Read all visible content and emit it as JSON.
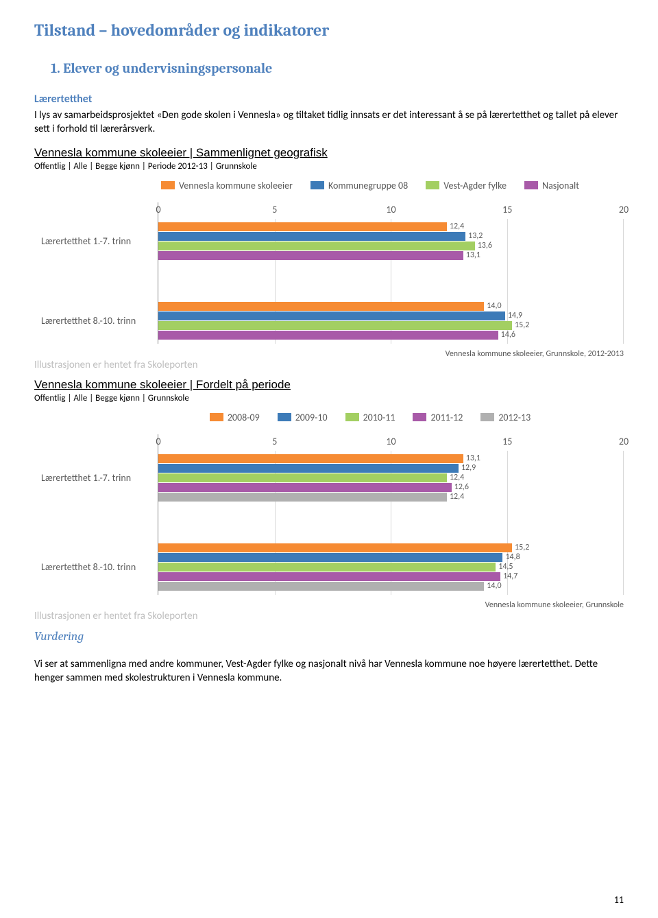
{
  "page": {
    "title_main": "Tilstand – hovedområder og indikatorer",
    "title_sub": "1.  Elever og undervisningspersonale",
    "section_header": "Lærertetthet",
    "intro_text": "I lys av samarbeidsprosjektet «Den gode skolen i Vennesla» og tiltaket tidlig innsats er det interessant å se på lærertetthet og tallet på elever sett i forhold til lærerårsverk.",
    "illus_note": "Illustrasjonen er hentet fra Skoleporten",
    "vurdering_hdr": "Vurdering",
    "conclusion": "Vi ser at sammenligna med andre kommuner, Vest-Agder fylke og nasjonalt nivå har Vennesla kommune noe høyere lærertetthet. Dette henger sammen med skolestrukturen i Vennesla kommune.",
    "page_num": "11"
  },
  "colors": {
    "orange": "#f68b33",
    "blue": "#3d7bb8",
    "green": "#a3cf62",
    "purple": "#a85aa8",
    "grey": "#b0b0b0"
  },
  "chart1": {
    "title": "Vennesla kommune skoleeier | Sammenlignet geografisk",
    "subtitle": "Offentlig | Alle | Begge kjønn | Periode 2012-13 | Grunnskole",
    "legend": [
      {
        "color": "#f68b33",
        "label": "Vennesla kommune skoleeier"
      },
      {
        "color": "#3d7bb8",
        "label": "Kommunegruppe 08"
      },
      {
        "color": "#a3cf62",
        "label": "Vest-Agder fylke"
      },
      {
        "color": "#a85aa8",
        "label": "Nasjonalt"
      }
    ],
    "xmax": 20,
    "xticks": [
      "0",
      "5",
      "10",
      "15",
      "20"
    ],
    "categories": [
      {
        "label": "Lærertetthet 1.-7. trinn",
        "bars": [
          {
            "color": "#f68b33",
            "value": 12.4,
            "label": "12,4"
          },
          {
            "color": "#3d7bb8",
            "value": 13.2,
            "label": "13,2"
          },
          {
            "color": "#a3cf62",
            "value": 13.6,
            "label": "13,6"
          },
          {
            "color": "#a85aa8",
            "value": 13.1,
            "label": "13,1"
          }
        ]
      },
      {
        "label": "Lærertetthet 8.-10. trinn",
        "bars": [
          {
            "color": "#f68b33",
            "value": 14.0,
            "label": "14,0"
          },
          {
            "color": "#3d7bb8",
            "value": 14.9,
            "label": "14,9"
          },
          {
            "color": "#a3cf62",
            "value": 15.2,
            "label": "15,2"
          },
          {
            "color": "#a85aa8",
            "value": 14.6,
            "label": "14,6"
          }
        ]
      }
    ],
    "caption": "Vennesla kommune skoleeier, Grunnskole, 2012-2013"
  },
  "chart2": {
    "title": "Vennesla kommune skoleeier | Fordelt på periode",
    "subtitle": "Offentlig | Alle | Begge kjønn | Grunnskole",
    "legend": [
      {
        "color": "#f68b33",
        "label": "2008-09"
      },
      {
        "color": "#3d7bb8",
        "label": "2009-10"
      },
      {
        "color": "#a3cf62",
        "label": "2010-11"
      },
      {
        "color": "#a85aa8",
        "label": "2011-12"
      },
      {
        "color": "#b0b0b0",
        "label": "2012-13"
      }
    ],
    "xmax": 20,
    "xticks": [
      "0",
      "5",
      "10",
      "15",
      "20"
    ],
    "categories": [
      {
        "label": "Lærertetthet 1.-7. trinn",
        "bars": [
          {
            "color": "#f68b33",
            "value": 13.1,
            "label": "13,1"
          },
          {
            "color": "#3d7bb8",
            "value": 12.9,
            "label": "12,9"
          },
          {
            "color": "#a3cf62",
            "value": 12.4,
            "label": "12,4"
          },
          {
            "color": "#a85aa8",
            "value": 12.6,
            "label": "12,6"
          },
          {
            "color": "#b0b0b0",
            "value": 12.4,
            "label": "12,4"
          }
        ]
      },
      {
        "label": "Lærertetthet 8.-10. trinn",
        "bars": [
          {
            "color": "#f68b33",
            "value": 15.2,
            "label": "15,2"
          },
          {
            "color": "#3d7bb8",
            "value": 14.8,
            "label": "14,8"
          },
          {
            "color": "#a3cf62",
            "value": 14.5,
            "label": "14,5"
          },
          {
            "color": "#a85aa8",
            "value": 14.7,
            "label": "14,7"
          },
          {
            "color": "#b0b0b0",
            "value": 14.0,
            "label": "14,0"
          }
        ]
      }
    ],
    "caption": "Vennesla kommune skoleeier, Grunnskole"
  }
}
